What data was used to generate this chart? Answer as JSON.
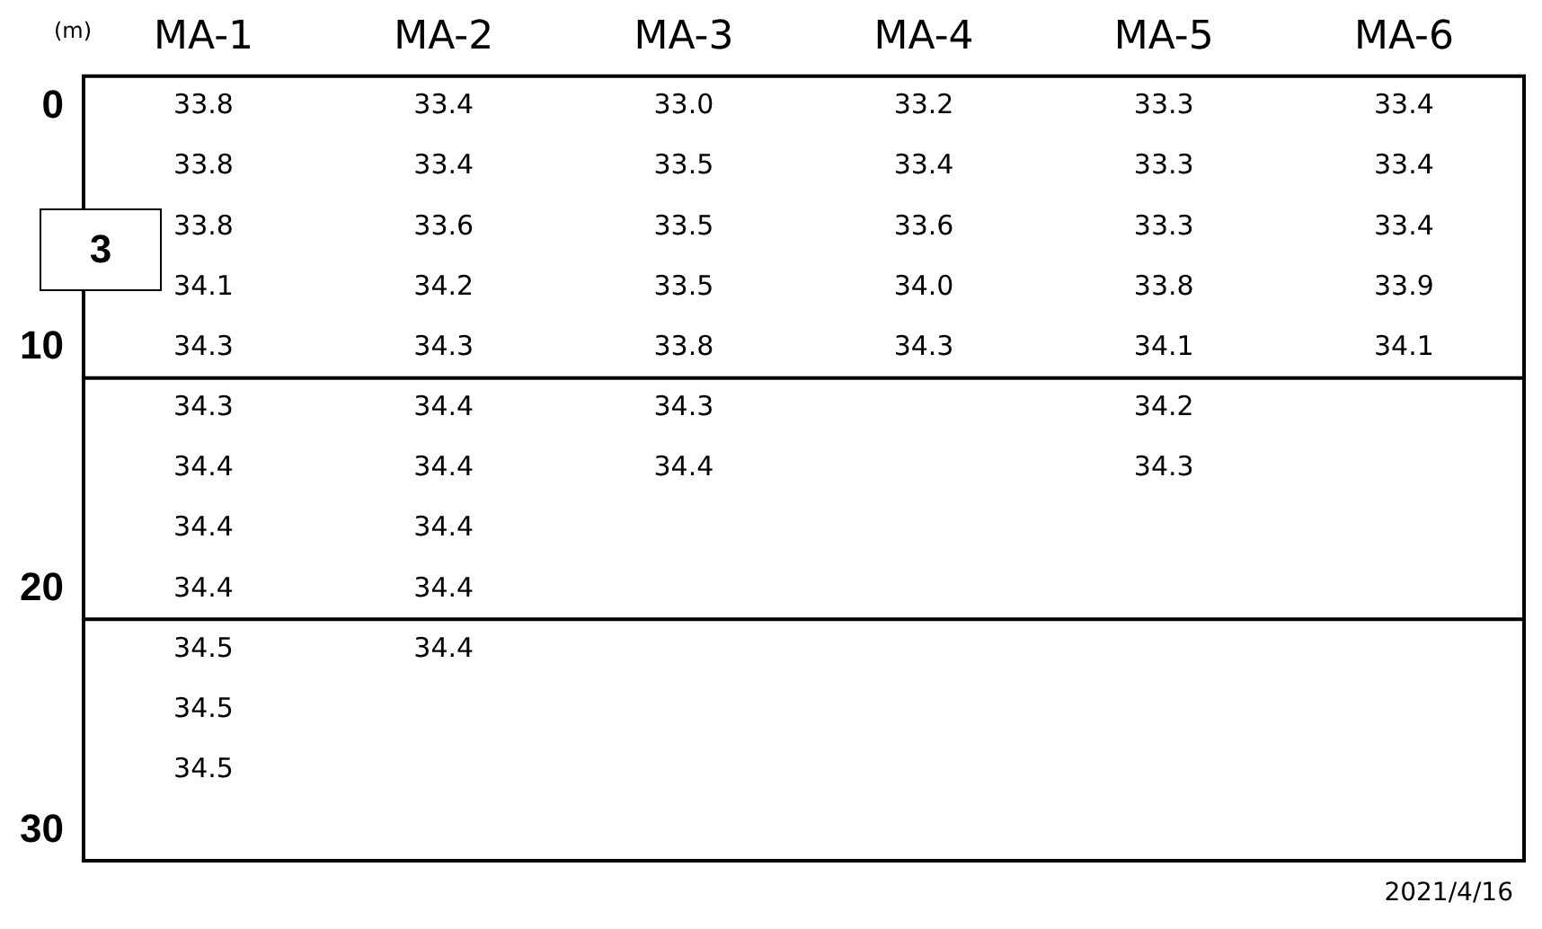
{
  "chart_data": {
    "type": "heatmap",
    "categories": [
      "MA-1",
      "MA-2",
      "MA-3",
      "MA-4",
      "MA-5",
      "MA-6"
    ],
    "y_categories": [
      "0",
      null,
      null,
      null,
      "10",
      null,
      null,
      null,
      "20",
      null,
      null,
      null,
      "30"
    ],
    "cells": [
      [
        33.8,
        33.4,
        33.0,
        33.2,
        33.3,
        33.4
      ],
      [
        33.8,
        33.4,
        33.5,
        33.4,
        33.3,
        33.4
      ],
      [
        33.8,
        33.6,
        33.5,
        33.6,
        33.3,
        33.4
      ],
      [
        34.1,
        34.2,
        33.5,
        34.0,
        33.8,
        33.9
      ],
      [
        34.3,
        34.3,
        33.8,
        34.3,
        34.1,
        34.1
      ],
      [
        34.3,
        34.4,
        34.3,
        null,
        34.2,
        null
      ],
      [
        34.4,
        34.4,
        34.4,
        null,
        34.3,
        null
      ],
      [
        34.4,
        34.4,
        null,
        null,
        null,
        null
      ],
      [
        34.4,
        34.4,
        null,
        null,
        null,
        null
      ],
      [
        34.5,
        34.4,
        null,
        null,
        null,
        null
      ],
      [
        34.5,
        null,
        null,
        null,
        null,
        null
      ],
      [
        34.5,
        null,
        null,
        null,
        null,
        null
      ],
      [
        null,
        null,
        null,
        null,
        null,
        null
      ]
    ],
    "cell_labels": [
      [
        "33.8",
        "33.4",
        "33.0",
        "33.2",
        "33.3",
        "33.4"
      ],
      [
        "33.8",
        "33.4",
        "33.5",
        "33.4",
        "33.3",
        "33.4"
      ],
      [
        "33.8",
        "33.6",
        "33.5",
        "33.6",
        "33.3",
        "33.4"
      ],
      [
        "34.1",
        "34.2",
        "33.5",
        "34.0",
        "33.8",
        "33.9"
      ],
      [
        "34.3",
        "34.3",
        "33.8",
        "34.3",
        "34.1",
        "34.1"
      ],
      [
        "34.3",
        "34.4",
        "34.3",
        null,
        "34.2",
        null
      ],
      [
        "34.4",
        "34.4",
        "34.4",
        null,
        "34.3",
        null
      ],
      [
        "34.4",
        "34.4",
        null,
        null,
        null,
        null
      ],
      [
        "34.4",
        "34.4",
        null,
        null,
        null,
        null
      ],
      [
        "34.5",
        "34.4",
        null,
        null,
        null,
        null
      ],
      [
        "34.5",
        null,
        null,
        null,
        null,
        null
      ],
      [
        "34.5",
        null,
        null,
        null,
        null,
        null
      ],
      [
        null,
        null,
        null,
        null,
        null,
        null
      ]
    ],
    "ylabel": "(m)",
    "grid": "y",
    "data_labels": true,
    "annotations": [
      "3",
      "2021/4/16"
    ]
  }
}
